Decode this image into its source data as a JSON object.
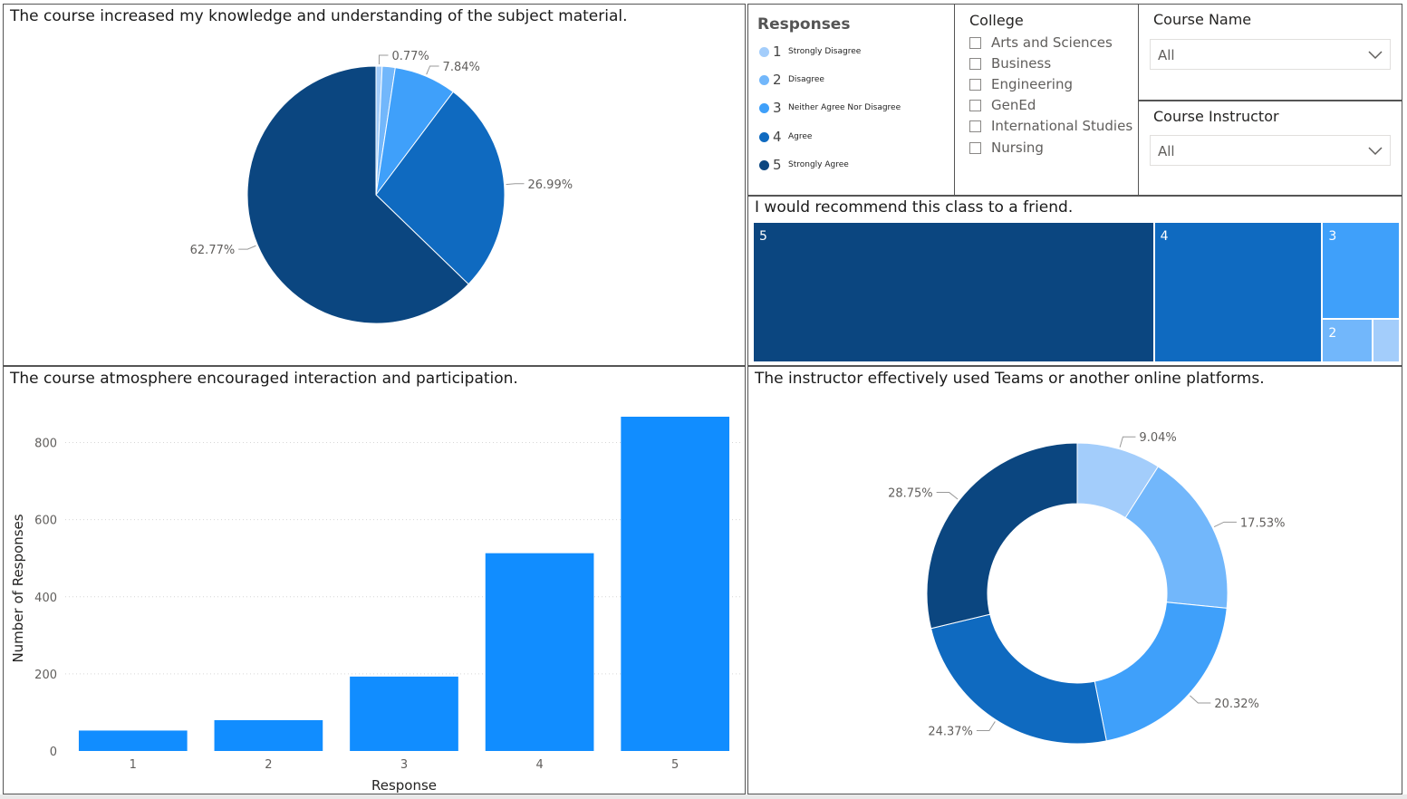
{
  "colors": {
    "r1": "#a3cdfb",
    "r2": "#72b7fb",
    "r3": "#3fa0fa",
    "r4": "#0f6ac0",
    "r5": "#0b4680",
    "bar": "#118dff"
  },
  "legend": {
    "title": "Responses",
    "items": [
      {
        "num": "1",
        "label": "Strongly Disagree",
        "color": "#a3cdfb"
      },
      {
        "num": "2",
        "label": "Disagree",
        "color": "#72b7fb"
      },
      {
        "num": "3",
        "label": "Neither Agree Nor Disagree",
        "color": "#3fa0fa"
      },
      {
        "num": "4",
        "label": "Agree",
        "color": "#0f6ac0"
      },
      {
        "num": "5",
        "label": "Strongly Agree",
        "color": "#0b4680"
      }
    ]
  },
  "college_slicer": {
    "title": "College",
    "options": [
      "Arts and Sciences",
      "Business",
      "Engineering",
      "GenEd",
      "International Studies",
      "Nursing"
    ]
  },
  "course_name_slicer": {
    "title": "Course Name",
    "value": "All"
  },
  "course_instructor_slicer": {
    "title": "Course Instructor",
    "value": "All"
  },
  "chart_data": [
    {
      "type": "pie",
      "title": "The course increased my knowledge and understanding of the subject material.",
      "slices": [
        {
          "category": "1",
          "percent": 0.77,
          "label": "0.77%"
        },
        {
          "category": "2",
          "percent": 1.63,
          "label": ""
        },
        {
          "category": "3",
          "percent": 7.84,
          "label": "7.84%"
        },
        {
          "category": "4",
          "percent": 26.99,
          "label": "26.99%"
        },
        {
          "category": "5",
          "percent": 62.77,
          "label": "62.77%"
        }
      ]
    },
    {
      "type": "treemap",
      "title": "I would recommend this class to a friend.",
      "tiles": [
        {
          "category": "5",
          "label": "5",
          "value": 62
        },
        {
          "category": "4",
          "label": "4",
          "value": 26
        },
        {
          "category": "3",
          "label": "3",
          "value": 8.3
        },
        {
          "category": "2",
          "label": "2",
          "value": 2.4
        },
        {
          "category": "1",
          "label": "",
          "value": 1.3
        }
      ]
    },
    {
      "type": "bar",
      "title": "The course atmosphere encouraged interaction and participation.",
      "categories": [
        "1",
        "2",
        "3",
        "4",
        "5"
      ],
      "values": [
        53,
        80,
        193,
        513,
        867
      ],
      "xlabel": "Response",
      "ylabel": "Number of Responses",
      "ylim": [
        0,
        867
      ],
      "yticks": [
        0,
        200,
        400,
        600,
        800
      ],
      "grid": true
    },
    {
      "type": "donut",
      "title": "The instructor effectively used Teams or another online platforms.",
      "slices": [
        {
          "category": "1",
          "percent": 9.04,
          "label": "9.04%"
        },
        {
          "category": "2",
          "percent": 17.53,
          "label": "17.53%"
        },
        {
          "category": "3",
          "percent": 20.32,
          "label": "20.32%"
        },
        {
          "category": "4",
          "percent": 24.37,
          "label": "24.37%"
        },
        {
          "category": "5",
          "percent": 28.75,
          "label": "28.75%"
        }
      ]
    }
  ]
}
